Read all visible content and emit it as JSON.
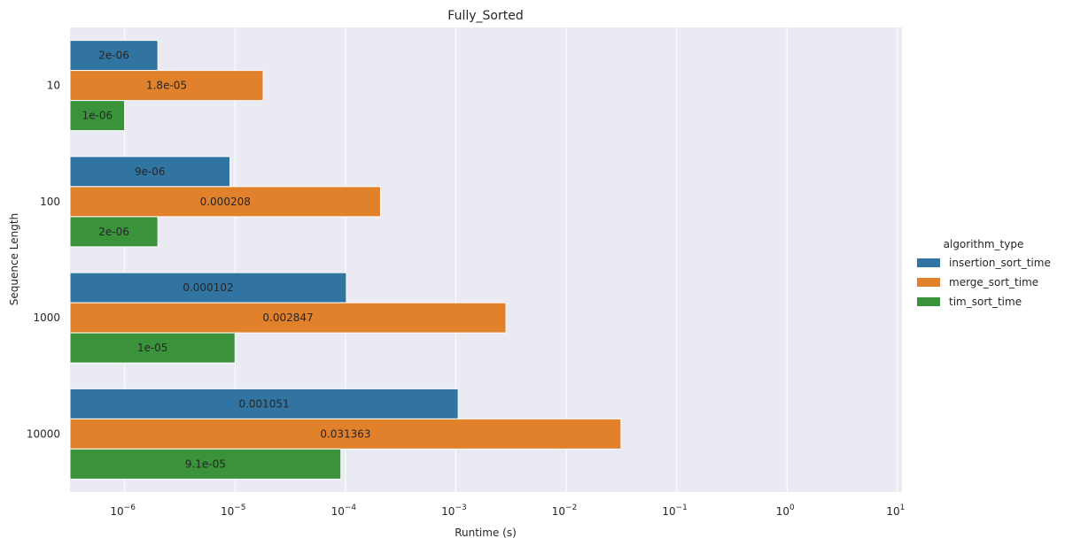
{
  "chart_data": {
    "type": "bar",
    "orientation": "horizontal",
    "title": "Fully_Sorted",
    "xlabel": "Runtime (s)",
    "ylabel": "Sequence Length",
    "xscale": "log",
    "xlim": [
      3.2e-07,
      11
    ],
    "x_ticks": [
      {
        "base": "10",
        "exp": "−6"
      },
      {
        "base": "10",
        "exp": "−5"
      },
      {
        "base": "10",
        "exp": "−4"
      },
      {
        "base": "10",
        "exp": "−3"
      },
      {
        "base": "10",
        "exp": "−2"
      },
      {
        "base": "10",
        "exp": "−1"
      },
      {
        "base": "10",
        "exp": "0"
      },
      {
        "base": "10",
        "exp": "1"
      }
    ],
    "x_tick_values": [
      1e-06,
      1e-05,
      0.0001,
      0.001,
      0.01,
      0.1,
      1,
      10
    ],
    "categories": [
      "10",
      "100",
      "1000",
      "10000"
    ],
    "grid": true,
    "legend_title": "algorithm_type",
    "legend_position": "right",
    "series": [
      {
        "name": "insertion_sort_time",
        "color": "#3274a1",
        "values": [
          2e-06,
          9e-06,
          0.000102,
          0.001051
        ],
        "labels": [
          "2e-06",
          "9e-06",
          "0.000102",
          "0.001051"
        ]
      },
      {
        "name": "merge_sort_time",
        "color": "#e1812c",
        "values": [
          1.8e-05,
          0.000208,
          0.002847,
          0.031363
        ],
        "labels": [
          "1.8e-05",
          "0.000208",
          "0.002847",
          "0.031363"
        ]
      },
      {
        "name": "tim_sort_time",
        "color": "#3a923a",
        "values": [
          1e-06,
          2e-06,
          1e-05,
          9.1e-05
        ],
        "labels": [
          "1e-06",
          "2e-06",
          "1e-05",
          "9.1e-05"
        ]
      }
    ]
  }
}
